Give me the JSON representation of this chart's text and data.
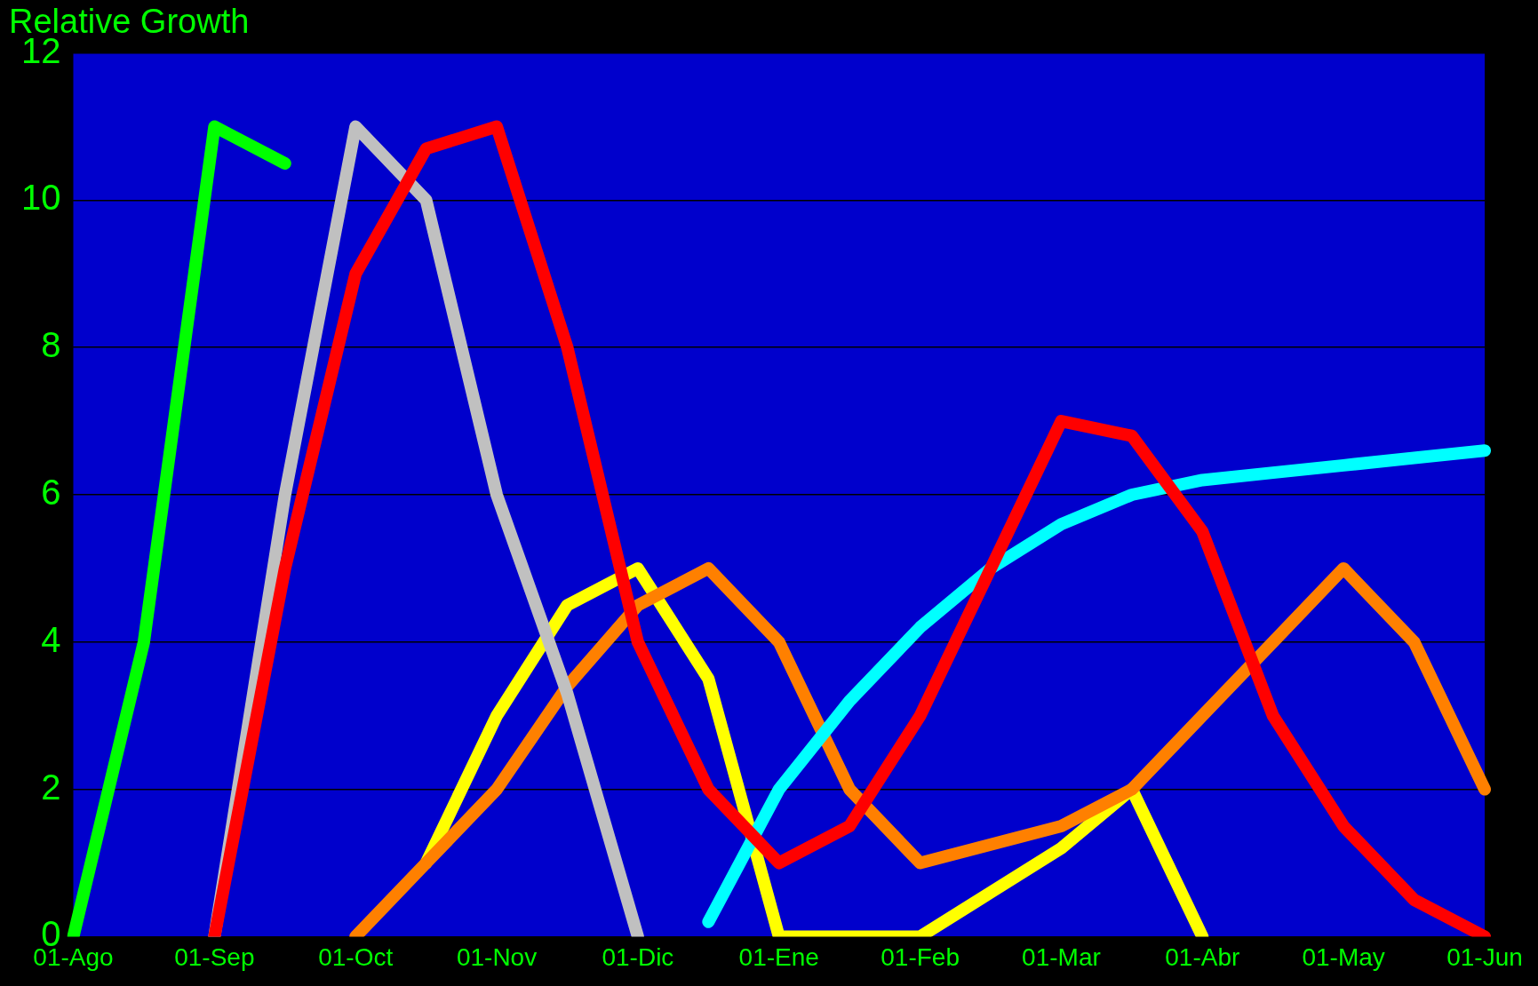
{
  "chart_data": {
    "type": "line",
    "title": "Relative Growth",
    "categories": [
      "01-Ago",
      null,
      "01-Sep",
      null,
      "01-Oct",
      null,
      "01-Nov",
      null,
      "01-Dic",
      null,
      "01-Ene",
      null,
      "01-Feb",
      null,
      "01-Mar",
      null,
      "01-Abr",
      null,
      "01-May",
      null,
      "01-Jun"
    ],
    "series": [
      {
        "color": "#ffff00",
        "values": [
          null,
          null,
          null,
          null,
          null,
          1,
          3,
          4.5,
          5,
          3.5,
          0,
          0,
          0,
          0.6,
          1.2,
          2,
          0,
          null,
          null,
          null,
          null
        ]
      },
      {
        "color": "#ff8000",
        "values": [
          null,
          null,
          null,
          null,
          0,
          1,
          2,
          3.4,
          4.5,
          5,
          4,
          2,
          1,
          1.25,
          1.5,
          2,
          3,
          4,
          5,
          4,
          2
        ]
      },
      {
        "color": "#c0c0c0",
        "values": [
          null,
          null,
          0,
          6,
          11,
          10,
          6,
          3.3,
          0,
          null,
          null,
          null,
          null,
          null,
          null,
          null,
          null,
          null,
          null,
          null,
          null
        ]
      },
      {
        "color": "#00ffff",
        "values": [
          null,
          null,
          null,
          null,
          null,
          null,
          null,
          null,
          null,
          0.2,
          2,
          3.2,
          4.2,
          5,
          5.6,
          6,
          6.2,
          6.3,
          6.4,
          6.5,
          6.6
        ]
      },
      {
        "color": "#ff0000",
        "values": [
          null,
          null,
          0,
          5,
          9,
          10.7,
          11,
          8,
          4,
          2,
          1,
          1.5,
          3,
          5,
          7,
          6.8,
          5.5,
          3,
          1.5,
          0.5,
          0
        ]
      },
      {
        "color": "#00ff00",
        "values": [
          0,
          4,
          11,
          10.5,
          null,
          null,
          null,
          null,
          null,
          null,
          null,
          null,
          null,
          null,
          null,
          null,
          null,
          null,
          null,
          null,
          null
        ]
      }
    ],
    "ylim": [
      0,
      12
    ],
    "yticks": [
      0,
      2,
      4,
      6,
      8,
      10,
      12
    ],
    "grid": "y",
    "legend": false,
    "marker": "none",
    "line_style": "solid"
  }
}
